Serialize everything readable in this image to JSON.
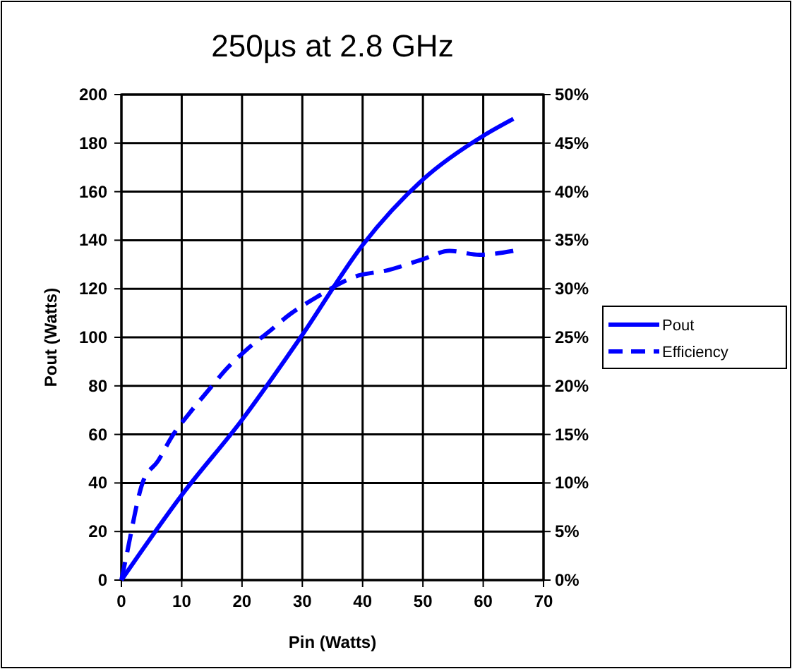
{
  "chart_data": {
    "type": "line",
    "title": "250µs at 2.8 GHz",
    "xlabel": "Pin (Watts)",
    "ylabel": "Pout (Watts)",
    "xlim": [
      0,
      70
    ],
    "xticks": [
      0,
      10,
      20,
      30,
      40,
      50,
      60,
      70
    ],
    "ylim": [
      0,
      200
    ],
    "yticks": [
      0,
      20,
      40,
      60,
      80,
      100,
      120,
      140,
      160,
      180,
      200
    ],
    "y2lim": [
      0,
      50
    ],
    "y2ticks": [
      {
        "value": 0,
        "label": "0%"
      },
      {
        "value": 5,
        "label": "5%"
      },
      {
        "value": 10,
        "label": "10%"
      },
      {
        "value": 15,
        "label": "15%"
      },
      {
        "value": 20,
        "label": "20%"
      },
      {
        "value": 25,
        "label": "25%"
      },
      {
        "value": 30,
        "label": "30%"
      },
      {
        "value": 35,
        "label": "35%"
      },
      {
        "value": 40,
        "label": "40%"
      },
      {
        "value": 45,
        "label": "45%"
      },
      {
        "value": 50,
        "label": "50%"
      }
    ],
    "grid": true,
    "legend": "right",
    "series": [
      {
        "name": "Pout",
        "color": "#0000ff",
        "line_style": "solid",
        "x": [
          0,
          10,
          20,
          30,
          40,
          50,
          60,
          65
        ],
        "values": [
          0,
          35,
          66,
          101,
          138,
          165,
          183,
          190
        ]
      },
      {
        "name": "Efficiency",
        "color": "#0000ff",
        "line_style": "dashed",
        "axis": "y2",
        "x": [
          0,
          0.9,
          3.5,
          6.1,
          8.4,
          11.3,
          14.5,
          17.5,
          20.7,
          24.5,
          28,
          32,
          39,
          44.1,
          49.8,
          54.4,
          59.4,
          65
        ],
        "values": [
          0,
          2.7,
          10,
          12.3,
          14.8,
          17.2,
          19.6,
          21.8,
          23.7,
          25.6,
          27.4,
          29,
          31.3,
          31.9,
          33,
          33.9,
          33.5,
          33.9
        ]
      }
    ]
  }
}
